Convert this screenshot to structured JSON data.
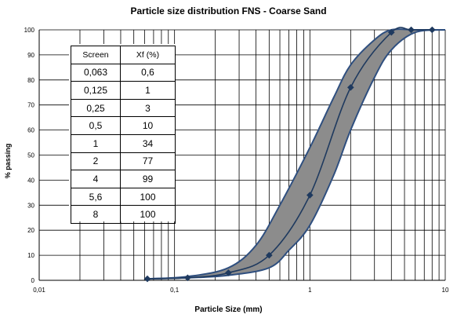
{
  "chart_data": {
    "type": "line",
    "title": "Particle size distribution FNS - Coarse Sand",
    "xlabel": "Particle Size (mm)",
    "ylabel": "% passing",
    "x_scale": "log",
    "xlim": [
      0.01,
      10
    ],
    "ylim": [
      0,
      100
    ],
    "x_tick_labels": [
      "0,01",
      "0,1",
      "1",
      "10"
    ],
    "y_ticks": [
      0,
      10,
      20,
      30,
      40,
      50,
      60,
      70,
      80,
      90,
      100
    ],
    "grid": true,
    "series": [
      {
        "role": "measured",
        "x": [
          0.063,
          0.125,
          0.25,
          0.5,
          1,
          2,
          4,
          5.6,
          8
        ],
        "y": [
          0.6,
          1,
          3,
          10,
          34,
          77,
          99,
          100,
          100
        ],
        "marker": "diamond",
        "color": "#1f3a5f"
      }
    ],
    "envelope": {
      "upper": {
        "x": [
          0.063,
          0.125,
          0.25,
          0.4,
          0.6,
          1,
          1.5,
          2,
          3,
          4,
          6,
          10
        ],
        "y": [
          0.6,
          1.5,
          5,
          14,
          30,
          53,
          73,
          86,
          96,
          100,
          100,
          100
        ]
      },
      "lower": {
        "x": [
          0.063,
          0.125,
          0.25,
          0.5,
          0.7,
          1,
          1.5,
          2,
          3,
          4,
          6,
          10
        ],
        "y": [
          0.6,
          1,
          2,
          5,
          12,
          22,
          42,
          60,
          81,
          92,
          99,
          100
        ]
      },
      "fill": "#8c8c8c",
      "stroke": "#2f4f7f"
    },
    "table": {
      "headers": [
        "Screen",
        "Xf (%)"
      ],
      "rows": [
        [
          "0,063",
          "0,6"
        ],
        [
          "0,125",
          "1"
        ],
        [
          "0,25",
          "3"
        ],
        [
          "0,5",
          "10"
        ],
        [
          "1",
          "34"
        ],
        [
          "2",
          "77"
        ],
        [
          "4",
          "99"
        ],
        [
          "5,6",
          "100"
        ],
        [
          "8",
          "100"
        ]
      ]
    }
  }
}
